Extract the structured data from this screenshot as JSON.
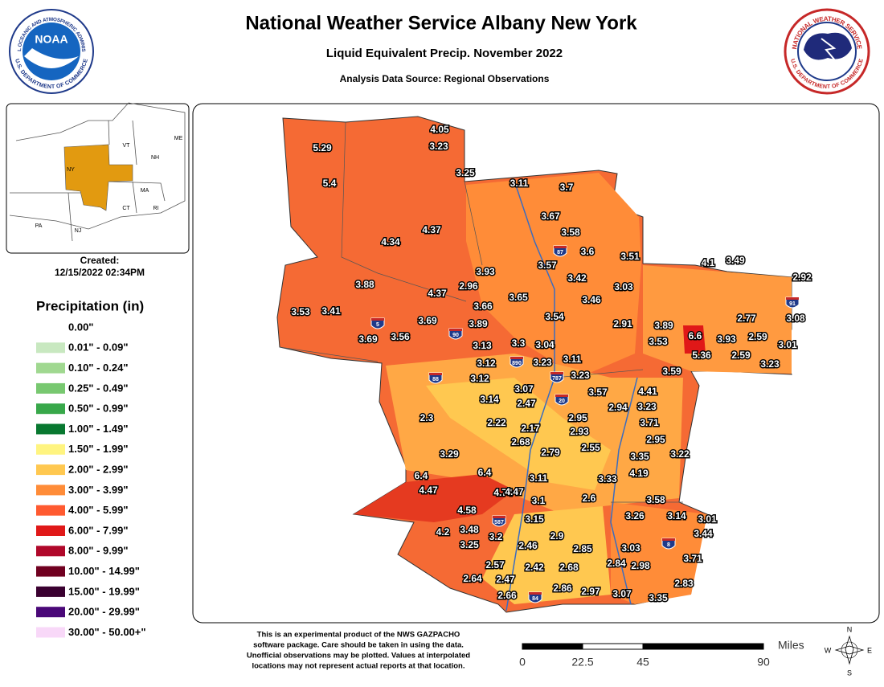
{
  "header": {
    "title": "National Weather Service Albany New York",
    "subtitle": "Liquid Equivalent Precip. November 2022",
    "source": "Analysis Data Source: Regional Observations"
  },
  "logos": {
    "noaa": {
      "name": "NOAA",
      "ring_top": "NATIONAL OCEANIC AND ATMOSPHERIC ADMINISTRATION",
      "ring_bottom": "U.S. DEPARTMENT OF COMMERCE"
    },
    "nws": {
      "ring_top": "NATIONAL WEATHER SERVICE",
      "ring_bottom": "U.S. DEPARTMENT OF COMMERCE"
    }
  },
  "inset": {
    "labels": [
      "VT",
      "NH",
      "ME",
      "NY",
      "MA",
      "CT",
      "RI",
      "PA",
      "NJ"
    ]
  },
  "created": {
    "label": "Created:",
    "timestamp": "12/15/2022 02:34PM"
  },
  "legend": {
    "title": "Precipitation (in)",
    "items": [
      {
        "label": "0.00\"",
        "color": "#ffffff"
      },
      {
        "label": "0.01\" - 0.09\"",
        "color": "#c8e8c0"
      },
      {
        "label": "0.10\" - 0.24\"",
        "color": "#a0d890"
      },
      {
        "label": "0.25\" - 0.49\"",
        "color": "#78c870"
      },
      {
        "label": "0.50\" - 0.99\"",
        "color": "#38a84a"
      },
      {
        "label": "1.00\" - 1.49\"",
        "color": "#087830"
      },
      {
        "label": "1.50\" - 1.99\"",
        "color": "#fff480"
      },
      {
        "label": "2.00\" - 2.99\"",
        "color": "#ffc850"
      },
      {
        "label": "3.00\" - 3.99\"",
        "color": "#ff8c38"
      },
      {
        "label": "4.00\" - 5.99\"",
        "color": "#ff5a30"
      },
      {
        "label": "6.00\" - 7.99\"",
        "color": "#e01818"
      },
      {
        "label": "8.00\" - 9.99\"",
        "color": "#b0082a"
      },
      {
        "label": "10.00\" - 14.99\"",
        "color": "#700020"
      },
      {
        "label": "15.00\" - 19.99\"",
        "color": "#3a0030"
      },
      {
        "label": "20.00\" - 29.99\"",
        "color": "#4a0878"
      },
      {
        "label": "30.00\" - 50.00+\"",
        "color": "#f8d8f8"
      }
    ]
  },
  "map": {
    "stations": [
      4.05,
      3.23,
      5.29,
      3.25,
      5.4,
      3.11,
      3.7,
      4.37,
      4.34,
      3.67,
      3.58,
      3.6,
      3.51,
      4.1,
      3.49,
      3.57,
      3.93,
      3.42,
      2.92,
      3.88,
      2.96,
      4.37,
      3.03,
      3.65,
      3.46,
      3.66,
      3.53,
      3.41,
      3.54,
      2.77,
      3.08,
      3.69,
      3.89,
      2.91,
      3.89,
      3.69,
      3.56,
      6.6,
      3.93,
      2.59,
      3.53,
      3.3,
      3.13,
      3.04,
      3.01,
      5.36,
      2.59,
      3.12,
      3.23,
      3.11,
      3.23,
      3.59,
      3.23,
      3.12,
      3.07,
      3.57,
      4.41,
      3.14,
      2.47,
      2.94,
      3.23,
      2.95,
      2.3,
      2.22,
      2.17,
      3.71,
      2.93,
      2.68,
      2.95,
      2.55,
      2.79,
      3.29,
      3.22,
      3.35,
      4.19,
      6.4,
      6.4,
      3.11,
      3.33,
      4.47,
      4.74,
      4.47,
      3.58,
      3.1,
      2.6,
      4.58,
      3.26,
      3.14,
      3.01,
      3.15,
      3.48,
      4.2,
      3.2,
      2.9,
      3.44,
      3.25,
      2.46,
      2.85,
      3.03,
      3.71,
      2.84,
      2.98,
      2.57,
      2.42,
      2.68,
      2.64,
      2.47,
      2.83,
      2.86,
      2.97,
      2.66,
      3.07,
      3.35
    ],
    "highways": [
      "87",
      "90",
      "5",
      "890",
      "88",
      "787",
      "20",
      "91",
      "587",
      "84",
      "8"
    ]
  },
  "disclaimer": [
    "This is an experimental product of the NWS GAZPACHO",
    "software package. Care should be taken in using the data.",
    "Unofficial observations may be plotted. Values at interpolated",
    "locations may not represent actual reports at that location."
  ],
  "scale": {
    "unit": "Miles",
    "ticks": [
      0,
      22.5,
      45,
      90
    ]
  },
  "compass": [
    "N",
    "E",
    "S",
    "W"
  ]
}
